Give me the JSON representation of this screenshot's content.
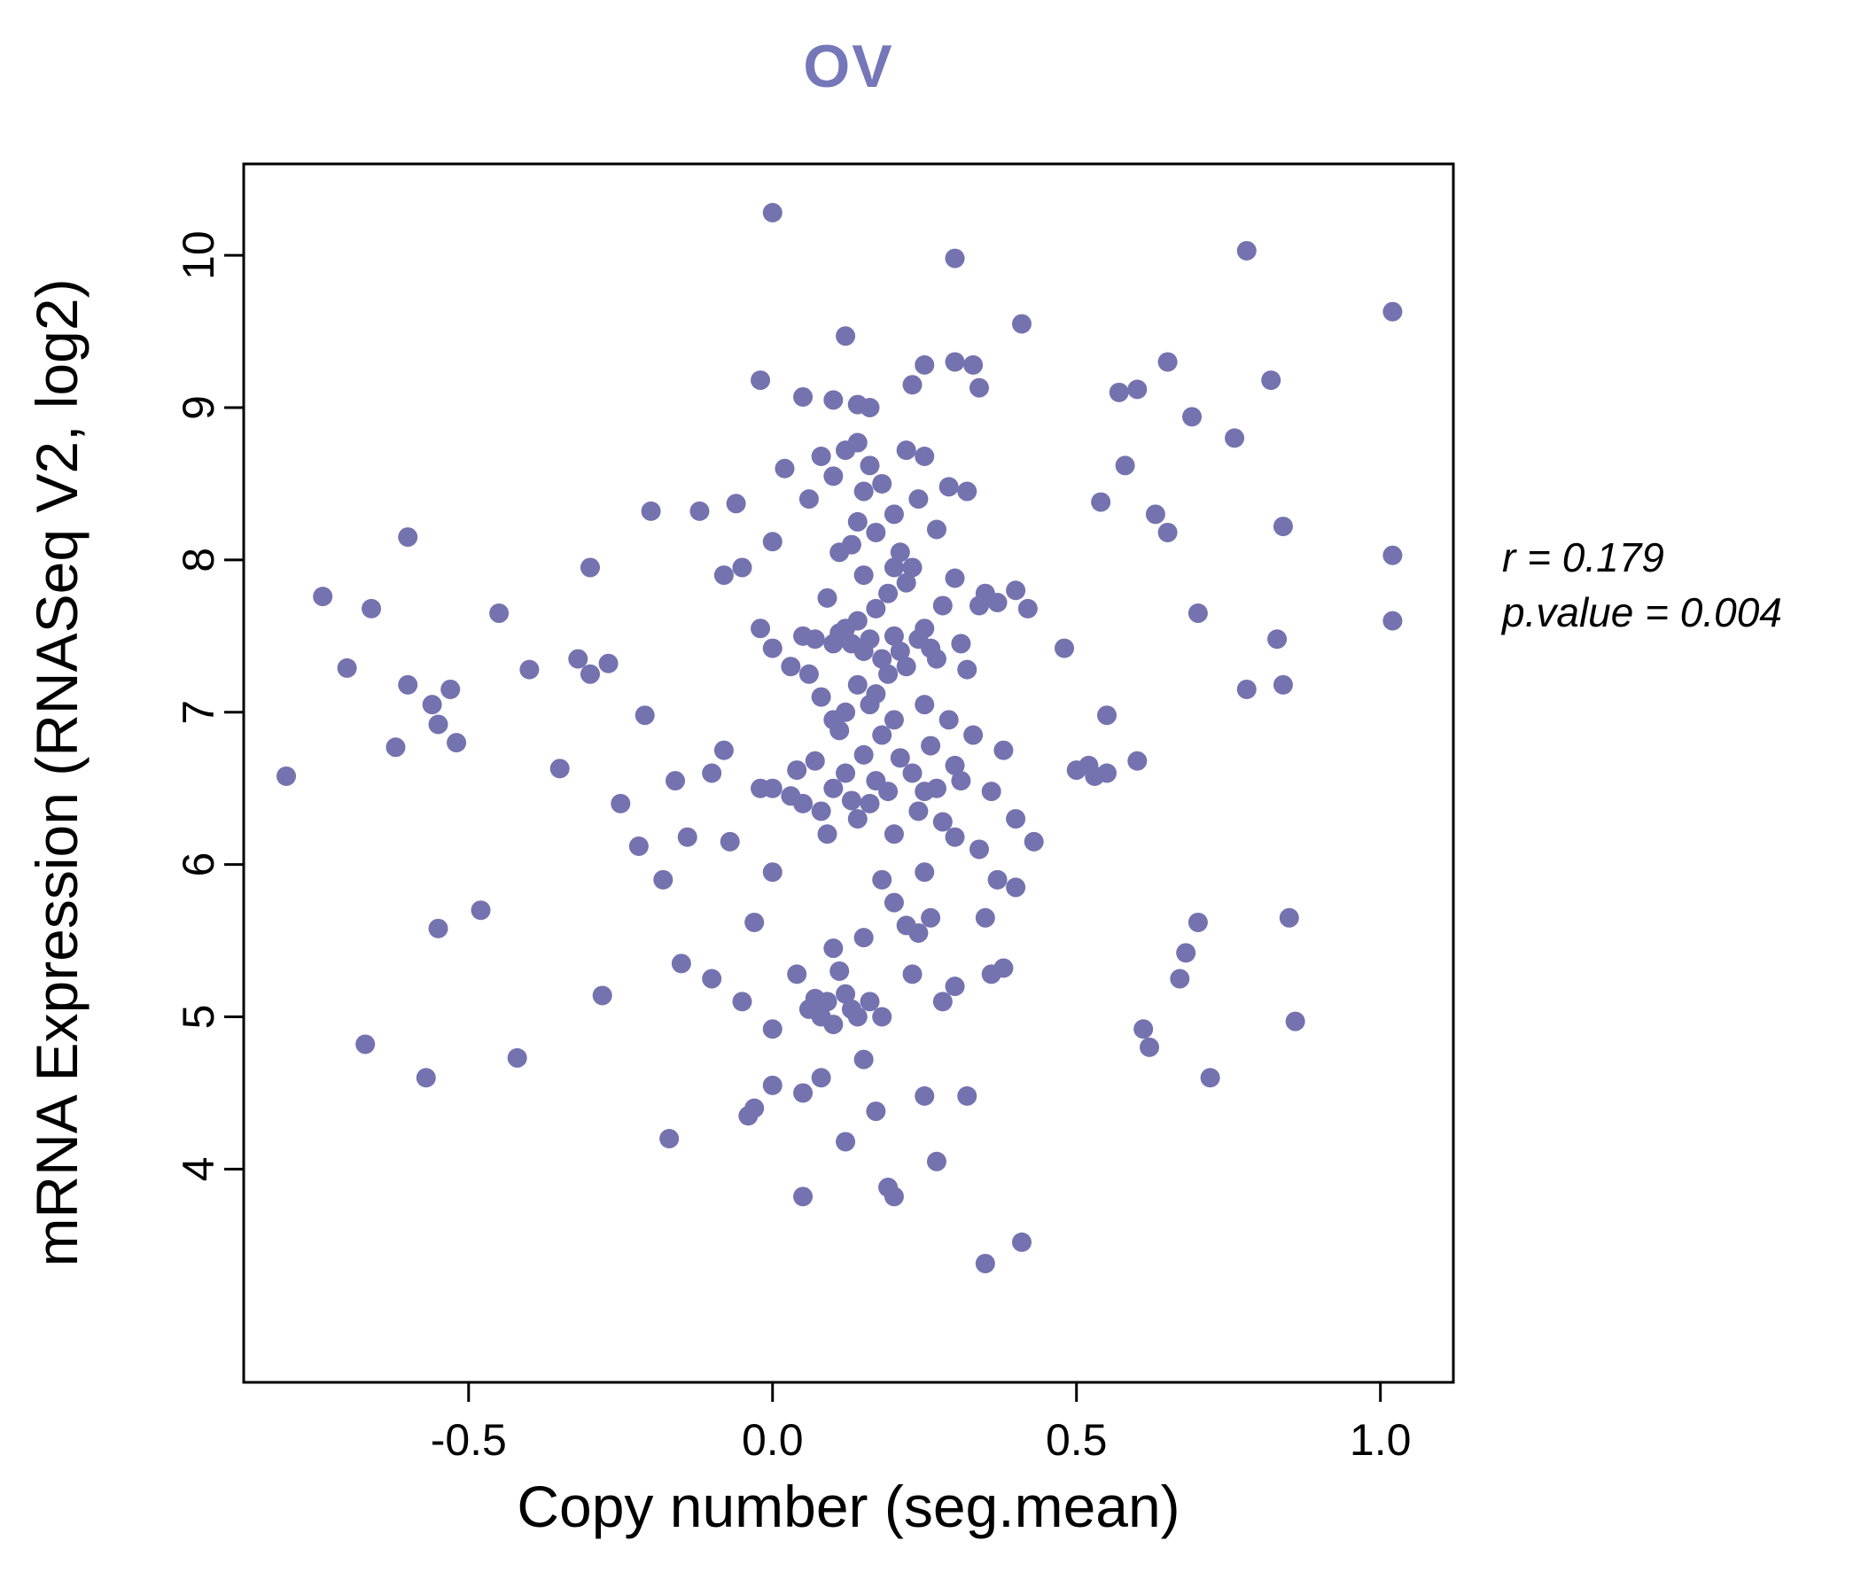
{
  "page": {
    "background": "#ffffff"
  },
  "annotation": {
    "r_line": "r = 0.179",
    "p_value_line": "p.value = 0.004"
  },
  "chart_data": {
    "type": "scatter",
    "title": "OV",
    "title_color": "#7577b9",
    "xlabel": "Copy number (seg.mean)",
    "ylabel": "mRNA Expression (RNASeq V2, log2)",
    "xlim": [
      -0.87,
      1.12
    ],
    "ylim": [
      2.6,
      10.6
    ],
    "grid": false,
    "legend": false,
    "point_color": "#7472af",
    "stats": {
      "r": 0.179,
      "p_value": 0.004
    },
    "xticks": [
      {
        "v": -0.5,
        "label": "-0.5"
      },
      {
        "v": 0.0,
        "label": "0.0"
      },
      {
        "v": 0.5,
        "label": "0.5"
      },
      {
        "v": 1.0,
        "label": "1.0"
      }
    ],
    "yticks": [
      {
        "v": 4,
        "label": "4"
      },
      {
        "v": 5,
        "label": "5"
      },
      {
        "v": 6,
        "label": "6"
      },
      {
        "v": 7,
        "label": "7"
      },
      {
        "v": 8,
        "label": "8"
      },
      {
        "v": 9,
        "label": "9"
      },
      {
        "v": 10,
        "label": "10"
      }
    ],
    "points": [
      [
        -0.8,
        6.58
      ],
      [
        -0.74,
        7.76
      ],
      [
        -0.7,
        7.29
      ],
      [
        -0.67,
        4.82
      ],
      [
        -0.66,
        7.68
      ],
      [
        -0.62,
        6.77
      ],
      [
        -0.6,
        8.15
      ],
      [
        -0.6,
        7.18
      ],
      [
        -0.57,
        4.6
      ],
      [
        -0.56,
        7.05
      ],
      [
        -0.55,
        6.92
      ],
      [
        -0.55,
        5.58
      ],
      [
        -0.53,
        7.15
      ],
      [
        -0.52,
        6.8
      ],
      [
        -0.48,
        5.7
      ],
      [
        -0.45,
        7.65
      ],
      [
        -0.42,
        4.73
      ],
      [
        -0.4,
        7.28
      ],
      [
        -0.35,
        6.63
      ],
      [
        -0.32,
        7.35
      ],
      [
        -0.3,
        7.95
      ],
      [
        -0.3,
        7.25
      ],
      [
        -0.28,
        5.14
      ],
      [
        -0.27,
        7.32
      ],
      [
        -0.25,
        6.4
      ],
      [
        -0.22,
        6.12
      ],
      [
        -0.21,
        6.98
      ],
      [
        -0.2,
        8.32
      ],
      [
        -0.18,
        5.9
      ],
      [
        -0.17,
        4.2
      ],
      [
        -0.16,
        6.55
      ],
      [
        -0.15,
        5.35
      ],
      [
        -0.14,
        6.18
      ],
      [
        -0.12,
        8.32
      ],
      [
        -0.1,
        6.6
      ],
      [
        -0.1,
        5.25
      ],
      [
        -0.08,
        7.9
      ],
      [
        -0.08,
        6.75
      ],
      [
        -0.07,
        6.15
      ],
      [
        -0.06,
        8.37
      ],
      [
        -0.05,
        7.95
      ],
      [
        -0.05,
        5.1
      ],
      [
        -0.04,
        4.35
      ],
      [
        -0.03,
        5.62
      ],
      [
        -0.03,
        4.4
      ],
      [
        -0.02,
        9.18
      ],
      [
        -0.02,
        7.55
      ],
      [
        -0.02,
        6.5
      ],
      [
        0.0,
        10.28
      ],
      [
        0.0,
        8.12
      ],
      [
        0.0,
        7.42
      ],
      [
        0.0,
        6.5
      ],
      [
        0.0,
        5.95
      ],
      [
        0.0,
        4.92
      ],
      [
        0.0,
        4.55
      ],
      [
        0.02,
        8.6
      ],
      [
        0.03,
        7.3
      ],
      [
        0.03,
        6.45
      ],
      [
        0.04,
        6.62
      ],
      [
        0.04,
        5.28
      ],
      [
        0.05,
        9.07
      ],
      [
        0.05,
        7.5
      ],
      [
        0.05,
        6.4
      ],
      [
        0.05,
        4.5
      ],
      [
        0.05,
        3.82
      ],
      [
        0.06,
        8.4
      ],
      [
        0.06,
        7.25
      ],
      [
        0.06,
        5.05
      ],
      [
        0.07,
        7.48
      ],
      [
        0.07,
        6.68
      ],
      [
        0.07,
        5.12
      ],
      [
        0.08,
        8.68
      ],
      [
        0.08,
        7.1
      ],
      [
        0.08,
        6.35
      ],
      [
        0.08,
        5.0
      ],
      [
        0.08,
        4.6
      ],
      [
        0.09,
        7.75
      ],
      [
        0.09,
        6.2
      ],
      [
        0.09,
        5.1
      ],
      [
        0.1,
        9.05
      ],
      [
        0.1,
        8.55
      ],
      [
        0.1,
        7.45
      ],
      [
        0.1,
        6.95
      ],
      [
        0.1,
        6.5
      ],
      [
        0.1,
        5.45
      ],
      [
        0.1,
        4.95
      ],
      [
        0.11,
        8.05
      ],
      [
        0.11,
        7.52
      ],
      [
        0.11,
        6.88
      ],
      [
        0.11,
        5.3
      ],
      [
        0.12,
        9.47
      ],
      [
        0.12,
        8.72
      ],
      [
        0.12,
        7.55
      ],
      [
        0.12,
        7.0
      ],
      [
        0.12,
        6.6
      ],
      [
        0.12,
        5.15
      ],
      [
        0.12,
        4.18
      ],
      [
        0.13,
        8.1
      ],
      [
        0.13,
        7.45
      ],
      [
        0.13,
        6.42
      ],
      [
        0.13,
        5.05
      ],
      [
        0.14,
        9.02
      ],
      [
        0.14,
        8.77
      ],
      [
        0.14,
        8.25
      ],
      [
        0.14,
        7.6
      ],
      [
        0.14,
        7.18
      ],
      [
        0.14,
        6.3
      ],
      [
        0.14,
        5.0
      ],
      [
        0.15,
        8.45
      ],
      [
        0.15,
        7.9
      ],
      [
        0.15,
        7.4
      ],
      [
        0.15,
        6.72
      ],
      [
        0.15,
        5.52
      ],
      [
        0.15,
        4.72
      ],
      [
        0.16,
        9.0
      ],
      [
        0.16,
        8.62
      ],
      [
        0.16,
        7.48
      ],
      [
        0.16,
        7.05
      ],
      [
        0.16,
        6.4
      ],
      [
        0.16,
        5.1
      ],
      [
        0.17,
        8.18
      ],
      [
        0.17,
        7.68
      ],
      [
        0.17,
        7.12
      ],
      [
        0.17,
        6.55
      ],
      [
        0.17,
        4.38
      ],
      [
        0.18,
        8.5
      ],
      [
        0.18,
        7.35
      ],
      [
        0.18,
        6.85
      ],
      [
        0.18,
        5.9
      ],
      [
        0.18,
        5.0
      ],
      [
        0.19,
        7.78
      ],
      [
        0.19,
        7.25
      ],
      [
        0.19,
        6.48
      ],
      [
        0.19,
        3.88
      ],
      [
        0.2,
        8.3
      ],
      [
        0.2,
        7.95
      ],
      [
        0.2,
        7.5
      ],
      [
        0.2,
        6.95
      ],
      [
        0.2,
        6.2
      ],
      [
        0.2,
        5.75
      ],
      [
        0.2,
        3.82
      ],
      [
        0.21,
        8.05
      ],
      [
        0.21,
        7.4
      ],
      [
        0.21,
        6.7
      ],
      [
        0.22,
        8.72
      ],
      [
        0.22,
        7.85
      ],
      [
        0.22,
        7.3
      ],
      [
        0.22,
        5.6
      ],
      [
        0.23,
        9.15
      ],
      [
        0.23,
        7.95
      ],
      [
        0.23,
        6.6
      ],
      [
        0.23,
        5.28
      ],
      [
        0.24,
        8.4
      ],
      [
        0.24,
        7.48
      ],
      [
        0.24,
        6.35
      ],
      [
        0.24,
        5.55
      ],
      [
        0.25,
        9.28
      ],
      [
        0.25,
        8.68
      ],
      [
        0.25,
        7.55
      ],
      [
        0.25,
        7.05
      ],
      [
        0.25,
        6.48
      ],
      [
        0.25,
        5.95
      ],
      [
        0.25,
        4.48
      ],
      [
        0.26,
        7.42
      ],
      [
        0.26,
        6.78
      ],
      [
        0.26,
        5.65
      ],
      [
        0.27,
        8.2
      ],
      [
        0.27,
        7.35
      ],
      [
        0.27,
        6.5
      ],
      [
        0.27,
        4.05
      ],
      [
        0.28,
        7.7
      ],
      [
        0.28,
        6.28
      ],
      [
        0.28,
        5.1
      ],
      [
        0.29,
        8.48
      ],
      [
        0.29,
        6.95
      ],
      [
        0.3,
        9.98
      ],
      [
        0.3,
        9.3
      ],
      [
        0.3,
        7.88
      ],
      [
        0.3,
        6.65
      ],
      [
        0.3,
        6.18
      ],
      [
        0.3,
        5.2
      ],
      [
        0.31,
        7.45
      ],
      [
        0.31,
        6.55
      ],
      [
        0.32,
        8.45
      ],
      [
        0.32,
        7.28
      ],
      [
        0.32,
        4.48
      ],
      [
        0.33,
        9.28
      ],
      [
        0.33,
        6.85
      ],
      [
        0.34,
        9.13
      ],
      [
        0.34,
        7.7
      ],
      [
        0.34,
        6.1
      ],
      [
        0.35,
        7.78
      ],
      [
        0.35,
        5.65
      ],
      [
        0.35,
        3.38
      ],
      [
        0.36,
        6.48
      ],
      [
        0.36,
        5.28
      ],
      [
        0.37,
        7.72
      ],
      [
        0.37,
        5.9
      ],
      [
        0.38,
        6.75
      ],
      [
        0.38,
        5.32
      ],
      [
        0.4,
        7.8
      ],
      [
        0.4,
        6.3
      ],
      [
        0.4,
        5.85
      ],
      [
        0.41,
        9.55
      ],
      [
        0.41,
        3.52
      ],
      [
        0.42,
        7.68
      ],
      [
        0.43,
        6.15
      ],
      [
        0.48,
        7.42
      ],
      [
        0.5,
        6.62
      ],
      [
        0.52,
        6.65
      ],
      [
        0.53,
        6.58
      ],
      [
        0.54,
        8.38
      ],
      [
        0.55,
        6.98
      ],
      [
        0.55,
        6.6
      ],
      [
        0.57,
        9.1
      ],
      [
        0.58,
        8.62
      ],
      [
        0.6,
        9.12
      ],
      [
        0.6,
        6.68
      ],
      [
        0.61,
        4.92
      ],
      [
        0.62,
        4.8
      ],
      [
        0.63,
        8.3
      ],
      [
        0.65,
        9.3
      ],
      [
        0.65,
        8.18
      ],
      [
        0.67,
        5.25
      ],
      [
        0.68,
        5.42
      ],
      [
        0.69,
        8.94
      ],
      [
        0.7,
        7.65
      ],
      [
        0.7,
        5.62
      ],
      [
        0.72,
        4.6
      ],
      [
        0.76,
        8.8
      ],
      [
        0.78,
        10.03
      ],
      [
        0.78,
        7.15
      ],
      [
        0.82,
        9.18
      ],
      [
        0.83,
        7.48
      ],
      [
        0.84,
        8.22
      ],
      [
        0.84,
        7.18
      ],
      [
        0.85,
        5.65
      ],
      [
        0.86,
        4.97
      ],
      [
        1.02,
        9.63
      ],
      [
        1.02,
        8.03
      ],
      [
        1.02,
        7.6
      ]
    ]
  }
}
